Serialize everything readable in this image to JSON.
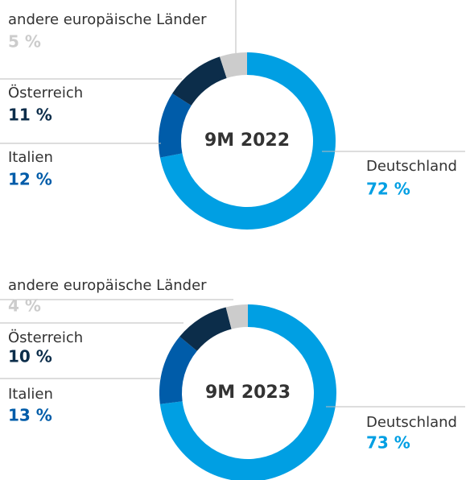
{
  "chart_data": [
    {
      "type": "pie",
      "title": "9M 2022",
      "categories": [
        "Deutschland",
        "Italien",
        "Österreich",
        "andere europäische Länder"
      ],
      "values": [
        72,
        12,
        11,
        5
      ],
      "value_labels": [
        "72 %",
        "12 %",
        "11 %",
        "5 %"
      ],
      "colors": [
        "#009fe3",
        "#005ca9",
        "#0c2d4a",
        "#cccccc"
      ]
    },
    {
      "type": "pie",
      "title": "9M 2023",
      "categories": [
        "Deutschland",
        "Italien",
        "Österreich",
        "andere europäische Länder"
      ],
      "values": [
        73,
        13,
        10,
        4
      ],
      "value_labels": [
        "73 %",
        "13 %",
        "10 %",
        "4 %"
      ],
      "colors": [
        "#009fe3",
        "#005ca9",
        "#0c2d4a",
        "#cccccc"
      ]
    }
  ]
}
